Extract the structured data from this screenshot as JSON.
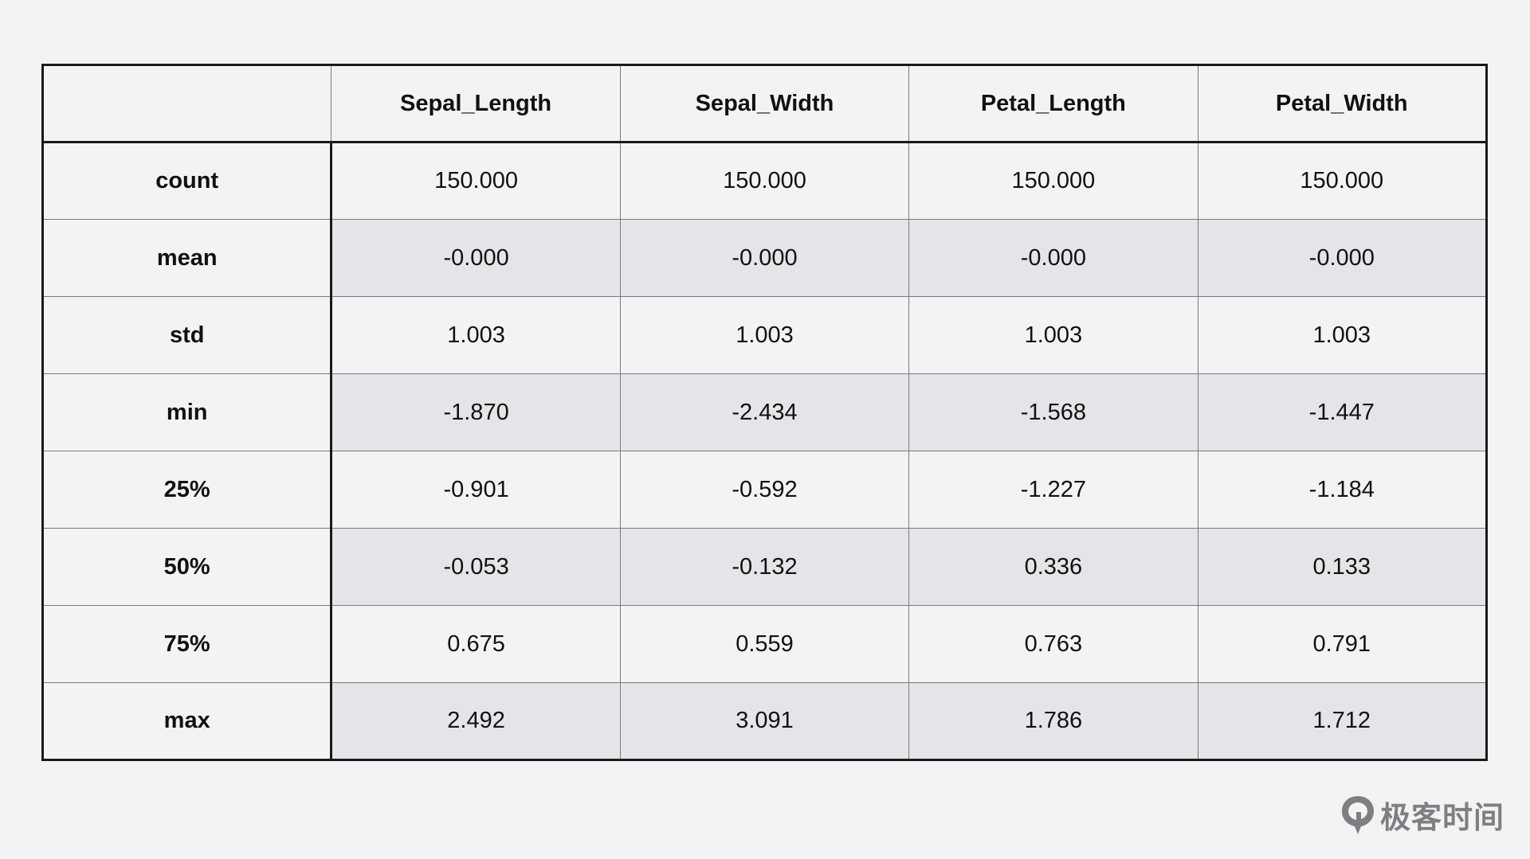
{
  "table": {
    "corner": "",
    "columns": [
      "Sepal_Length",
      "Sepal_Width",
      "Petal_Length",
      "Petal_Width"
    ],
    "rows": [
      {
        "label": "count",
        "values": [
          "150.000",
          "150.000",
          "150.000",
          "150.000"
        ]
      },
      {
        "label": "mean",
        "values": [
          "-0.000",
          "-0.000",
          "-0.000",
          "-0.000"
        ]
      },
      {
        "label": "std",
        "values": [
          "1.003",
          "1.003",
          "1.003",
          "1.003"
        ]
      },
      {
        "label": "min",
        "values": [
          "-1.870",
          "-2.434",
          "-1.568",
          "-1.447"
        ]
      },
      {
        "label": "25%",
        "values": [
          "-0.901",
          "-0.592",
          "-1.227",
          "-1.184"
        ]
      },
      {
        "label": "50%",
        "values": [
          "-0.053",
          "-0.132",
          "0.336",
          "0.133"
        ]
      },
      {
        "label": "75%",
        "values": [
          "0.675",
          "0.559",
          "0.763",
          "0.791"
        ]
      },
      {
        "label": "max",
        "values": [
          "2.492",
          "3.091",
          "1.786",
          "1.712"
        ]
      }
    ]
  },
  "watermark": {
    "icon": "geektime-logo-icon",
    "text": "极客时间"
  },
  "colors": {
    "background": "#f2f3f5",
    "shaded_row": "#e3e5e8",
    "border": "#1a1a1a",
    "watermark": "#7d7f83"
  }
}
